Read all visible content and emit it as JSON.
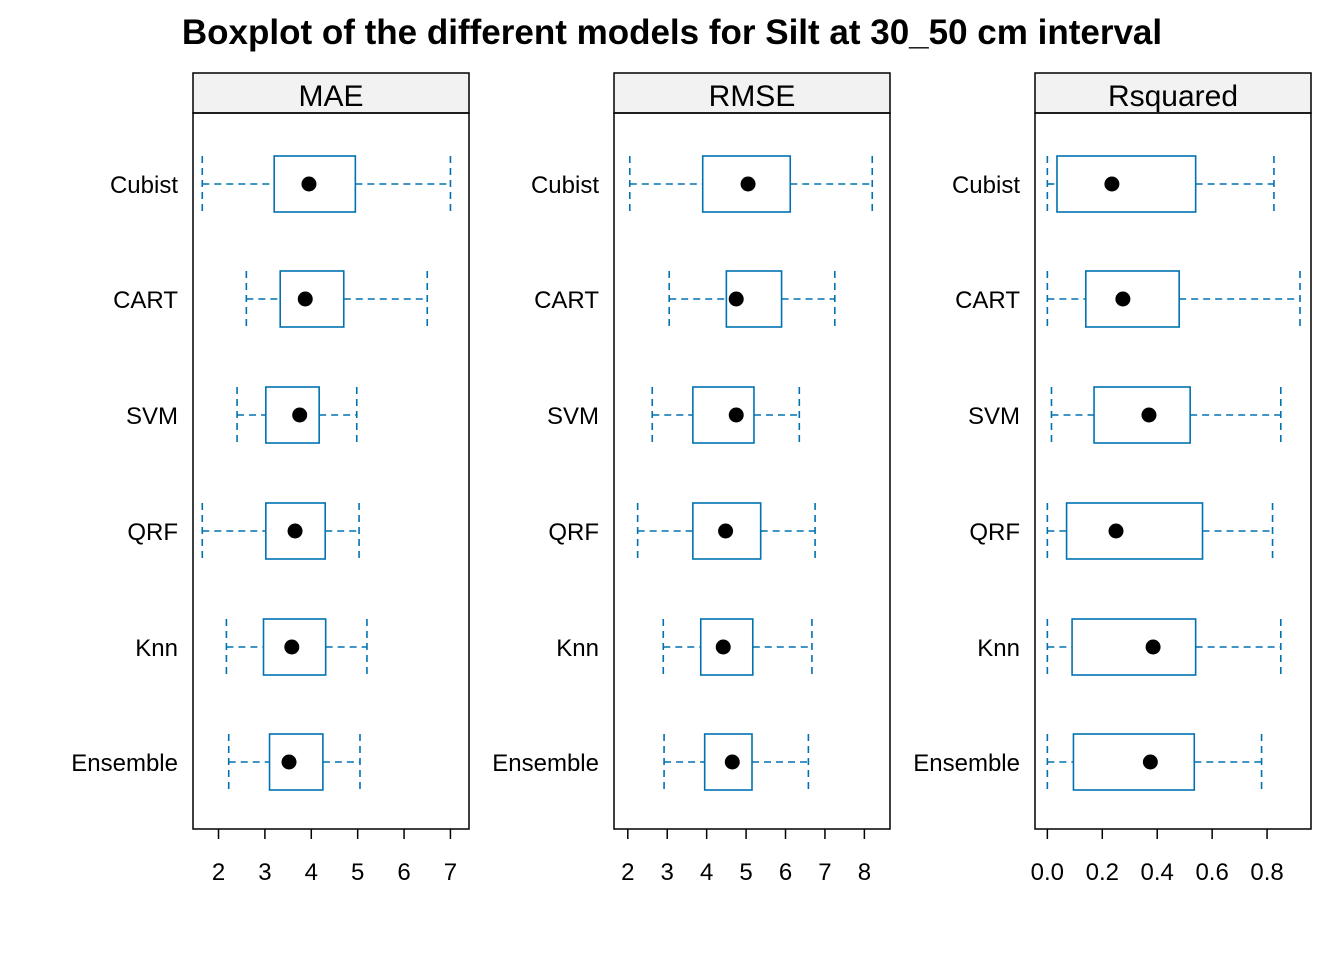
{
  "chart_data": {
    "type": "boxplot",
    "title": "Boxplot of the different models for Silt at 30_50 cm interval",
    "categories": [
      "Cubist",
      "CART",
      "SVM",
      "QRF",
      "Knn",
      "Ensemble"
    ],
    "colors": {
      "box": "#0072B2",
      "median": "#000000",
      "strip": "#F2F2F2",
      "frame": "#000000"
    },
    "grid": false,
    "panels": [
      {
        "name": "MAE",
        "xlim": [
          1.45,
          7.4
        ],
        "ticks": [
          2,
          3,
          4,
          5,
          6,
          7
        ],
        "tick_labels": [
          "2",
          "3",
          "4",
          "5",
          "6",
          "7"
        ],
        "boxes": [
          {
            "label": "Cubist",
            "min": 1.65,
            "q1": 3.2,
            "median": 3.95,
            "q3": 4.95,
            "max": 7.0
          },
          {
            "label": "CART",
            "min": 2.6,
            "q1": 3.33,
            "median": 3.87,
            "q3": 4.7,
            "max": 6.5
          },
          {
            "label": "SVM",
            "min": 2.4,
            "q1": 3.02,
            "median": 3.75,
            "q3": 4.17,
            "max": 4.98
          },
          {
            "label": "QRF",
            "min": 1.65,
            "q1": 3.02,
            "median": 3.65,
            "q3": 4.3,
            "max": 5.03
          },
          {
            "label": "Knn",
            "min": 2.17,
            "q1": 2.97,
            "median": 3.58,
            "q3": 4.31,
            "max": 5.2
          },
          {
            "label": "Ensemble",
            "min": 2.22,
            "q1": 3.1,
            "median": 3.52,
            "q3": 4.25,
            "max": 5.05
          }
        ]
      },
      {
        "name": "RMSE",
        "xlim": [
          1.65,
          8.65
        ],
        "ticks": [
          2,
          3,
          4,
          5,
          6,
          7,
          8
        ],
        "tick_labels": [
          "2",
          "3",
          "4",
          "5",
          "6",
          "7",
          "8"
        ],
        "boxes": [
          {
            "label": "Cubist",
            "min": 2.05,
            "q1": 3.9,
            "median": 5.05,
            "q3": 6.12,
            "max": 8.2
          },
          {
            "label": "CART",
            "min": 3.05,
            "q1": 4.5,
            "median": 4.75,
            "q3": 5.9,
            "max": 7.25
          },
          {
            "label": "SVM",
            "min": 2.62,
            "q1": 3.65,
            "median": 4.75,
            "q3": 5.2,
            "max": 6.35
          },
          {
            "label": "QRF",
            "min": 2.25,
            "q1": 3.65,
            "median": 4.48,
            "q3": 5.37,
            "max": 6.75
          },
          {
            "label": "Knn",
            "min": 2.9,
            "q1": 3.85,
            "median": 4.42,
            "q3": 5.17,
            "max": 6.67
          },
          {
            "label": "Ensemble",
            "min": 2.92,
            "q1": 3.95,
            "median": 4.65,
            "q3": 5.15,
            "max": 6.58
          }
        ]
      },
      {
        "name": "Rsquared",
        "xlim": [
          -0.045,
          0.96
        ],
        "ticks": [
          0.0,
          0.2,
          0.4,
          0.6,
          0.8
        ],
        "tick_labels": [
          "0.0",
          "0.2",
          "0.4",
          "0.6",
          "0.8"
        ],
        "boxes": [
          {
            "label": "Cubist",
            "min": 0.0,
            "q1": 0.035,
            "median": 0.235,
            "q3": 0.54,
            "max": 0.825
          },
          {
            "label": "CART",
            "min": 0.0,
            "q1": 0.14,
            "median": 0.275,
            "q3": 0.48,
            "max": 0.92
          },
          {
            "label": "SVM",
            "min": 0.015,
            "q1": 0.17,
            "median": 0.37,
            "q3": 0.52,
            "max": 0.85
          },
          {
            "label": "QRF",
            "min": 0.0,
            "q1": 0.07,
            "median": 0.25,
            "q3": 0.565,
            "max": 0.82
          },
          {
            "label": "Knn",
            "min": 0.0,
            "q1": 0.09,
            "median": 0.385,
            "q3": 0.54,
            "max": 0.85
          },
          {
            "label": "Ensemble",
            "min": 0.0,
            "q1": 0.095,
            "median": 0.375,
            "q3": 0.535,
            "max": 0.78
          }
        ]
      }
    ]
  }
}
